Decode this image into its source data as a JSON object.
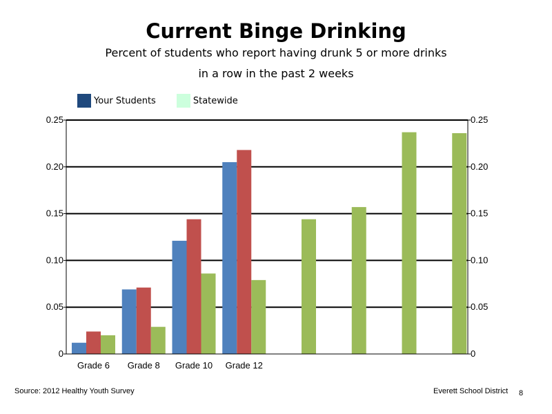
{
  "slide": {
    "title": "Current Binge Drinking",
    "subtitle_line1": "Percent of students who report having drunk 5 or more drinks",
    "subtitle_line2": "in a row in the past 2 weeks",
    "source": "Source: 2012 Healthy Youth Survey",
    "organization": "Everett School District",
    "page_number": "8"
  },
  "legend": {
    "items": [
      {
        "label": "Your Students",
        "color": "#1f497d"
      },
      {
        "label": "Statewide",
        "color": "#ccffdd"
      }
    ]
  },
  "colors": {
    "blue": "#4f81bd",
    "red": "#c0504d",
    "green": "#9bbb59"
  },
  "chart_data": {
    "type": "bar",
    "title": "Current Binge Drinking",
    "grid": true,
    "legend_position": "top-left",
    "ylim": [
      0,
      0.25
    ],
    "yticks": [
      "0",
      "0.05",
      "0.10",
      "0.15",
      "0.20",
      "0.25"
    ],
    "categories": [
      "Grade 6",
      "Grade 8",
      "Grade 10",
      "Grade 12",
      "",
      "",
      "",
      ""
    ],
    "series": [
      {
        "color": "#4f81bd",
        "values": [
          0.012,
          0.069,
          0.121,
          0.205,
          null,
          null,
          null,
          null
        ]
      },
      {
        "color": "#c0504d",
        "values": [
          0.024,
          0.071,
          0.144,
          0.218,
          null,
          null,
          null,
          null
        ]
      },
      {
        "color": "#9bbb59",
        "values": [
          0.02,
          0.029,
          0.086,
          0.079,
          null,
          null,
          null,
          null
        ]
      }
    ],
    "secondary_series": {
      "color": "#9bbb59",
      "values": [
        0.144,
        0.157,
        0.237,
        0.236
      ]
    }
  }
}
